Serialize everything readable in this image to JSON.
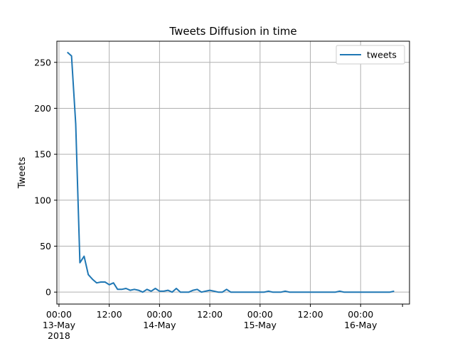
{
  "chart_data": {
    "type": "line",
    "title": "Tweets Diffusion in time",
    "xlabel": "",
    "ylabel": "Tweets",
    "ylim": [
      -13,
      273
    ],
    "xlim": [
      "2018-05-12T23:30",
      "2018-05-16T11:40"
    ],
    "grid": true,
    "legend": {
      "location": "upper right",
      "entries": [
        "tweets"
      ]
    },
    "colors": {
      "series": "#1f77b4",
      "grid": "#b0b0b0",
      "legend_border": "#cccccc"
    },
    "yticks": [
      0,
      50,
      100,
      150,
      200,
      250
    ],
    "xticks": [
      {
        "t": "2018-05-13T00:00",
        "lines": [
          "00:00",
          "13-May",
          "2018"
        ]
      },
      {
        "t": "2018-05-13T12:00",
        "lines": [
          "12:00"
        ]
      },
      {
        "t": "2018-05-14T00:00",
        "lines": [
          "00:00",
          "14-May"
        ]
      },
      {
        "t": "2018-05-14T12:00",
        "lines": [
          "12:00"
        ]
      },
      {
        "t": "2018-05-15T00:00",
        "lines": [
          "00:00",
          "15-May"
        ]
      },
      {
        "t": "2018-05-15T12:00",
        "lines": [
          "12:00"
        ]
      },
      {
        "t": "2018-05-16T00:00",
        "lines": [
          "00:00",
          "16-May"
        ]
      },
      {
        "t": "2018-05-16T10:00",
        "lines": []
      }
    ],
    "series": [
      {
        "name": "tweets",
        "x": [
          "2018-05-13T02:00",
          "2018-05-13T03:00",
          "2018-05-13T04:00",
          "2018-05-13T05:00",
          "2018-05-13T06:00",
          "2018-05-13T07:00",
          "2018-05-13T08:00",
          "2018-05-13T09:00",
          "2018-05-13T10:00",
          "2018-05-13T11:00",
          "2018-05-13T12:00",
          "2018-05-13T13:00",
          "2018-05-13T14:00",
          "2018-05-13T15:00",
          "2018-05-13T16:00",
          "2018-05-13T17:00",
          "2018-05-13T18:00",
          "2018-05-13T19:00",
          "2018-05-13T20:00",
          "2018-05-13T21:00",
          "2018-05-13T22:00",
          "2018-05-13T23:00",
          "2018-05-14T00:00",
          "2018-05-14T01:00",
          "2018-05-14T02:00",
          "2018-05-14T03:00",
          "2018-05-14T04:00",
          "2018-05-14T05:00",
          "2018-05-14T06:00",
          "2018-05-14T07:00",
          "2018-05-14T08:00",
          "2018-05-14T09:00",
          "2018-05-14T10:00",
          "2018-05-14T11:00",
          "2018-05-14T12:00",
          "2018-05-14T13:00",
          "2018-05-14T14:00",
          "2018-05-14T15:00",
          "2018-05-14T16:00",
          "2018-05-14T17:00",
          "2018-05-14T18:00",
          "2018-05-14T19:00",
          "2018-05-14T20:00",
          "2018-05-14T21:00",
          "2018-05-14T22:00",
          "2018-05-14T23:00",
          "2018-05-15T00:00",
          "2018-05-15T01:00",
          "2018-05-15T02:00",
          "2018-05-15T03:00",
          "2018-05-15T04:00",
          "2018-05-15T05:00",
          "2018-05-15T06:00",
          "2018-05-15T07:00",
          "2018-05-15T08:00",
          "2018-05-15T09:00",
          "2018-05-15T10:00",
          "2018-05-15T11:00",
          "2018-05-15T12:00",
          "2018-05-15T13:00",
          "2018-05-15T14:00",
          "2018-05-15T15:00",
          "2018-05-15T16:00",
          "2018-05-15T17:00",
          "2018-05-15T18:00",
          "2018-05-15T19:00",
          "2018-05-15T20:00",
          "2018-05-15T21:00",
          "2018-05-15T22:00",
          "2018-05-15T23:00",
          "2018-05-16T00:00",
          "2018-05-16T01:00",
          "2018-05-16T02:00",
          "2018-05-16T03:00",
          "2018-05-16T04:00",
          "2018-05-16T05:00",
          "2018-05-16T06:00",
          "2018-05-16T07:00",
          "2018-05-16T08:00"
        ],
        "values": [
          261,
          257,
          183,
          32,
          39,
          19,
          14,
          10,
          11,
          11,
          8,
          10,
          3,
          3,
          4,
          2,
          3,
          2,
          0,
          3,
          1,
          4,
          1,
          1,
          2,
          0,
          4,
          0,
          0,
          0,
          2,
          3,
          0,
          1,
          2,
          1,
          0,
          0,
          3,
          0,
          0,
          0,
          0,
          0,
          0,
          0,
          0,
          0,
          1,
          0,
          0,
          0,
          1,
          0,
          0,
          0,
          0,
          0,
          0,
          0,
          0,
          0,
          0,
          0,
          0,
          1,
          0,
          0,
          0,
          0,
          0,
          0,
          0,
          0,
          0,
          0,
          0,
          0,
          1
        ]
      }
    ]
  }
}
